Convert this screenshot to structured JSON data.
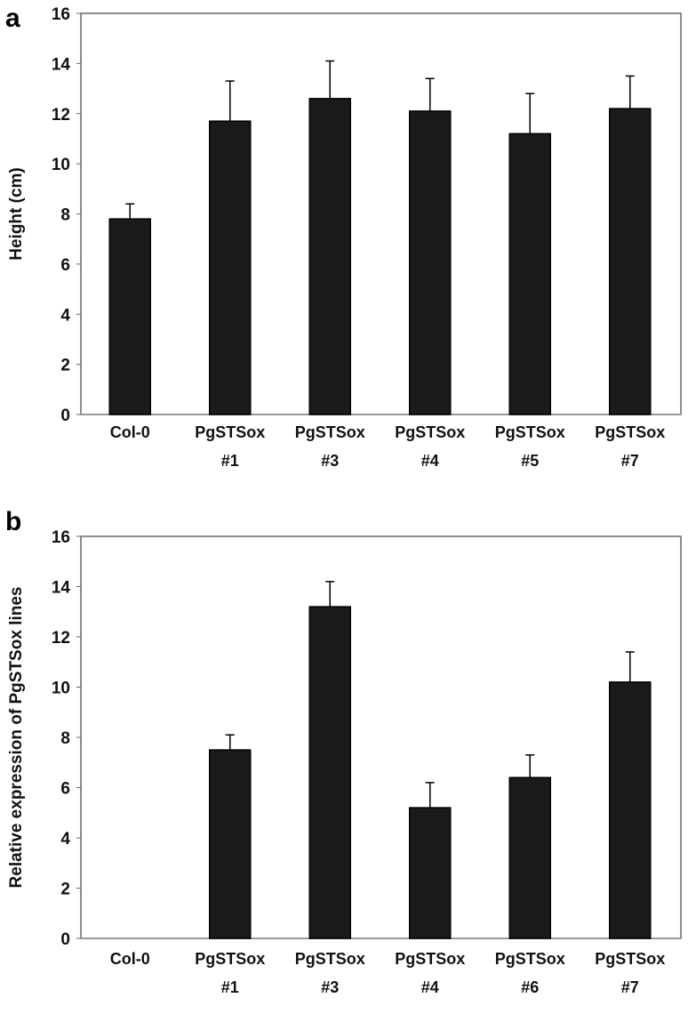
{
  "chart_data": [
    {
      "type": "bar",
      "panel_label": "a",
      "title": "",
      "xlabel": "",
      "ylabel": "Height (cm)",
      "ylim": [
        0,
        16
      ],
      "yticks": [
        "0",
        "2",
        "4",
        "6",
        "8",
        "10",
        "12",
        "14",
        "16"
      ],
      "categories": [
        [
          "Col-0"
        ],
        [
          "PgSTSox",
          "#1"
        ],
        [
          "PgSTSox",
          "#3"
        ],
        [
          "PgSTSox",
          "#4"
        ],
        [
          "PgSTSox",
          "#5"
        ],
        [
          "PgSTSox",
          "#7"
        ]
      ],
      "values": [
        7.8,
        11.7,
        12.6,
        12.1,
        11.2,
        12.2
      ],
      "error_upper": [
        8.4,
        13.3,
        14.1,
        13.4,
        12.8,
        13.5
      ],
      "bar_color": "#1a1a1a",
      "grid": false
    },
    {
      "type": "bar",
      "panel_label": "b",
      "title": "",
      "xlabel": "",
      "ylabel": "Relative expression of PgSTSox lines",
      "ylim": [
        0,
        16
      ],
      "yticks": [
        "0",
        "2",
        "4",
        "6",
        "8",
        "10",
        "12",
        "14",
        "16"
      ],
      "categories": [
        [
          "Col-0"
        ],
        [
          "PgSTSox",
          "#1"
        ],
        [
          "PgSTSox",
          "#3"
        ],
        [
          "PgSTSox",
          "#4"
        ],
        [
          "PgSTSox",
          "#6"
        ],
        [
          "PgSTSox",
          "#7"
        ]
      ],
      "values": [
        0,
        7.5,
        13.2,
        5.2,
        6.4,
        10.2
      ],
      "error_upper": [
        0,
        8.1,
        14.2,
        6.2,
        7.3,
        11.4
      ],
      "bar_color": "#1a1a1a",
      "grid": false
    }
  ]
}
